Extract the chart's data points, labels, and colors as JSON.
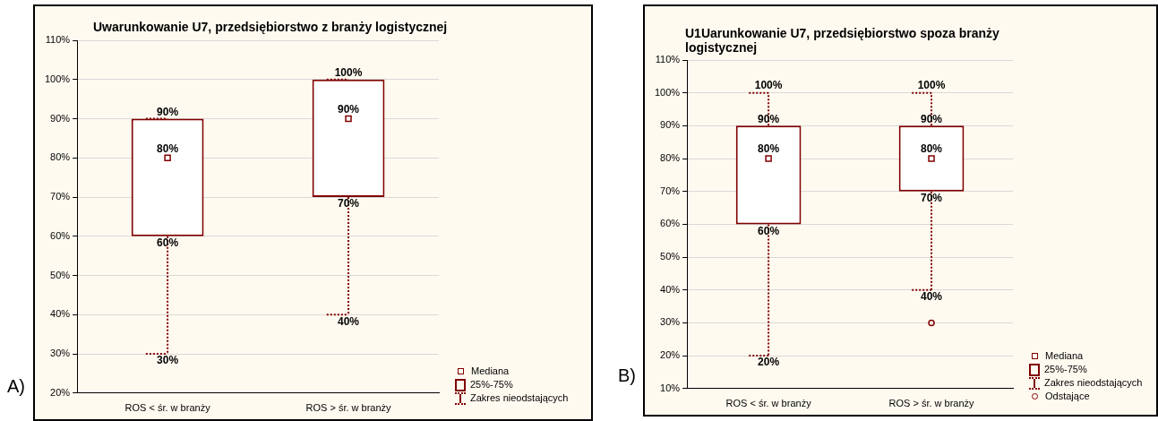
{
  "chart_data": [
    {
      "type": "box",
      "title": "Uwarunkowanie U7, przedsiębiorstwo z branży logistycznej",
      "categories": [
        "ROS < śr. w branży",
        "ROS > śr. w branży"
      ],
      "color": "#800000",
      "boxes": [
        {
          "low": 30,
          "q1": 60,
          "median": 80,
          "q3": 90,
          "high": 90
        },
        {
          "low": 40,
          "q1": 70,
          "median": 90,
          "q3": 100,
          "high": 100
        }
      ],
      "ylim": [
        20,
        110
      ],
      "yticks": [
        {
          "value": 20,
          "label": "20%"
        },
        {
          "value": 30,
          "label": "30%"
        },
        {
          "value": 40,
          "label": "40%"
        },
        {
          "value": 50,
          "label": "50%"
        },
        {
          "value": 60,
          "label": "60%"
        },
        {
          "value": 70,
          "label": "70%"
        },
        {
          "value": 80,
          "label": "80%"
        },
        {
          "value": 90,
          "label": "90%"
        },
        {
          "value": 100,
          "label": "100%"
        },
        {
          "value": 110,
          "label": "110%"
        }
      ],
      "grid": "y",
      "value_labels": [
        [
          "30%",
          "60%",
          "80%",
          "90%",
          null
        ],
        [
          "40%",
          "70%",
          "90%",
          "100%",
          null
        ]
      ],
      "annotations": [
        "A)",
        "Mediana",
        "25%-75%",
        "Zakres nieodstających"
      ]
    },
    {
      "type": "box",
      "title": "U1Uarunkowanie U7, przedsiębiorstwo spoza branży logistycznej",
      "categories": [
        "ROS < śr. w branży",
        "ROS > śr. w branży"
      ],
      "color": "#800000",
      "boxes": [
        {
          "low": 20,
          "q1": 60,
          "median": 80,
          "q3": 90,
          "high": 100
        },
        {
          "low": 40,
          "q1": 70,
          "median": 80,
          "q3": 90,
          "high": 100,
          "outliers": [
            30
          ]
        }
      ],
      "ylim": [
        10,
        110
      ],
      "yticks": [
        {
          "value": 10,
          "label": "10%"
        },
        {
          "value": 20,
          "label": "20%"
        },
        {
          "value": 30,
          "label": "30%"
        },
        {
          "value": 40,
          "label": "40%"
        },
        {
          "value": 50,
          "label": "50%"
        },
        {
          "value": 60,
          "label": "60%"
        },
        {
          "value": 70,
          "label": "70%"
        },
        {
          "value": 80,
          "label": "80%"
        },
        {
          "value": 90,
          "label": "90%"
        },
        {
          "value": 100,
          "label": "100%"
        },
        {
          "value": 110,
          "label": "110%"
        }
      ],
      "grid": "y",
      "value_labels": [
        [
          "20%",
          "60%",
          "80%",
          "90%",
          "100%"
        ],
        [
          "40%",
          "70%",
          "80%",
          "90%",
          "100%"
        ]
      ],
      "annotations": [
        "B)",
        "Mediana",
        "25%-75%",
        "Zakres nieodstających",
        "Odstające"
      ]
    }
  ]
}
